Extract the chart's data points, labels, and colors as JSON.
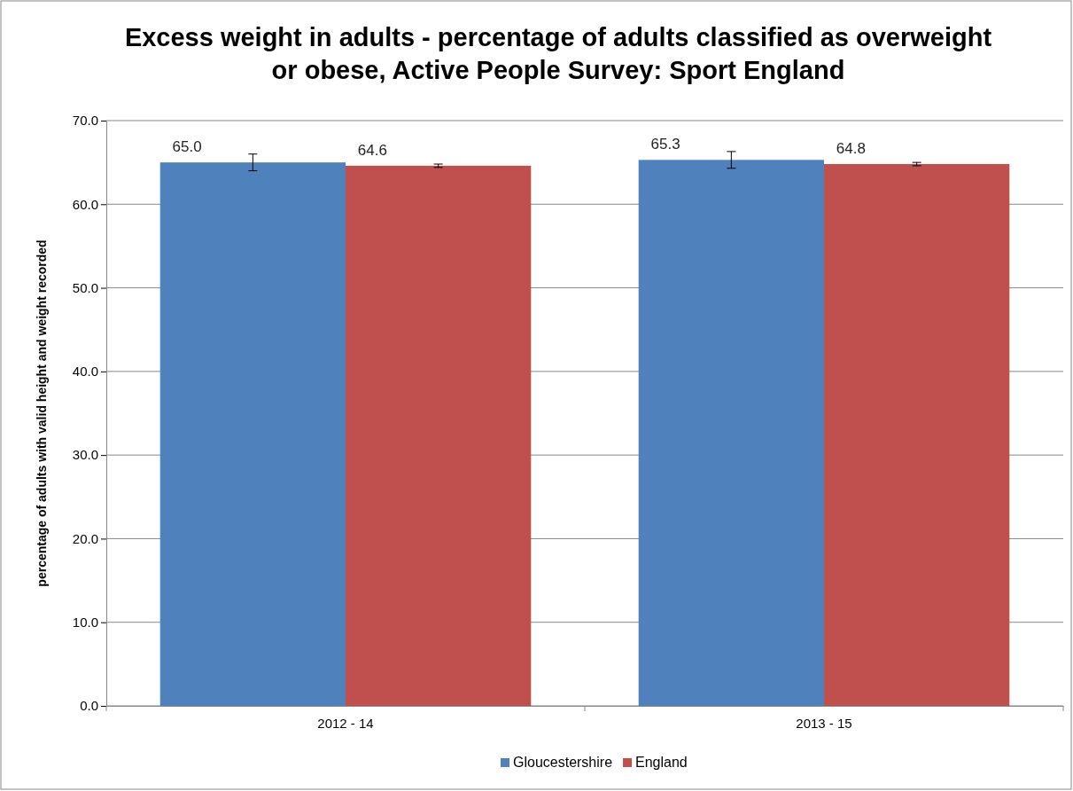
{
  "chart_data": {
    "type": "bar",
    "title": "Excess weight in adults - percentage of adults classified as overweight or obese, Active People Survey: Sport England",
    "ylabel": "percentage of adults with valid height and weight recorded",
    "categories": [
      "2012 - 14",
      "2013 - 15"
    ],
    "series": [
      {
        "name": "Gloucestershire",
        "color": "#4f81bd",
        "values": [
          65.0,
          65.3
        ],
        "value_labels": [
          "65.0",
          "65.3"
        ],
        "errors": [
          1.0,
          1.0
        ]
      },
      {
        "name": "England",
        "color": "#c0504d",
        "values": [
          64.6,
          64.8
        ],
        "value_labels": [
          "64.6",
          "64.8"
        ],
        "errors": [
          0.2,
          0.2
        ]
      }
    ],
    "ylim": [
      0,
      70
    ],
    "yticks": [
      {
        "value": 0,
        "label": "0.0"
      },
      {
        "value": 10,
        "label": "10.0"
      },
      {
        "value": 20,
        "label": "20.0"
      },
      {
        "value": 30,
        "label": "30.0"
      },
      {
        "value": 40,
        "label": "40.0"
      },
      {
        "value": 50,
        "label": "50.0"
      },
      {
        "value": 60,
        "label": "60.0"
      },
      {
        "value": 70,
        "label": "70.0"
      }
    ],
    "grid": "y",
    "legend": "bottom"
  }
}
